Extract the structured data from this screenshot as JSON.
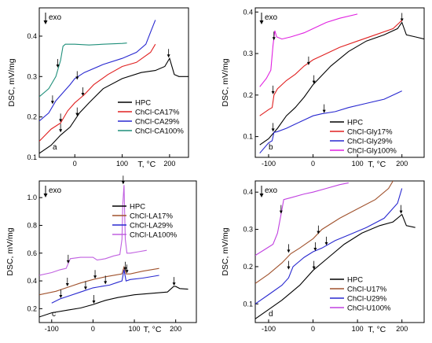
{
  "chart_data": [
    {
      "type": "line",
      "panel_label": "a",
      "exo_label": "exo",
      "xlabel": "T, °C",
      "ylabel": "DSC, mV/mg",
      "xlim": [
        -75,
        240
      ],
      "ylim": [
        0.1,
        0.47
      ],
      "xticks": [
        {
          "v": 0,
          "t": "0"
        },
        {
          "v": 100,
          "t": "100"
        },
        {
          "v": 200,
          "t": "200"
        }
      ],
      "yticks": [
        {
          "v": 0.1,
          "t": "0.1"
        },
        {
          "v": 0.2,
          "t": "0.2"
        },
        {
          "v": 0.3,
          "t": "0.3"
        },
        {
          "v": 0.4,
          "t": "0.4"
        }
      ],
      "legend_position": "bottom-right",
      "series": [
        {
          "name": "HPC",
          "color": "#000000",
          "x": [
            -75,
            -50,
            -30,
            -10,
            10,
            30,
            60,
            100,
            140,
            170,
            190,
            200,
            210,
            220,
            240
          ],
          "y": [
            0.11,
            0.13,
            0.155,
            0.175,
            0.21,
            0.235,
            0.27,
            0.295,
            0.31,
            0.315,
            0.325,
            0.345,
            0.305,
            0.3,
            0.3
          ],
          "arrows": [
            {
              "x": -30,
              "y": 0.16
            },
            {
              "x": 5,
              "y": 0.2
            },
            {
              "x": 198,
              "y": 0.345
            }
          ]
        },
        {
          "name": "ChCl-CA17%",
          "color": "#e02020",
          "x": [
            -75,
            -50,
            -30,
            -15,
            0,
            20,
            40,
            70,
            100,
            130,
            160,
            170
          ],
          "y": [
            0.14,
            0.17,
            0.185,
            0.215,
            0.235,
            0.255,
            0.28,
            0.305,
            0.325,
            0.335,
            0.36,
            0.38
          ],
          "arrows": [
            {
              "x": -30,
              "y": 0.185
            },
            {
              "x": 17,
              "y": 0.25
            }
          ]
        },
        {
          "name": "ChCl-CA29%",
          "color": "#2828d0",
          "x": [
            -75,
            -55,
            -40,
            -25,
            -10,
            0,
            20,
            60,
            100,
            130,
            150,
            160,
            170
          ],
          "y": [
            0.19,
            0.21,
            0.24,
            0.26,
            0.28,
            0.295,
            0.31,
            0.33,
            0.345,
            0.36,
            0.38,
            0.41,
            0.44
          ],
          "arrows": [
            {
              "x": -47,
              "y": 0.23
            },
            {
              "x": 5,
              "y": 0.29
            }
          ]
        },
        {
          "name": "ChCl-CA100%",
          "color": "#1f8f7a",
          "x": [
            -75,
            -55,
            -40,
            -30,
            -25,
            -20,
            0,
            30,
            60,
            100,
            110
          ],
          "y": [
            0.25,
            0.27,
            0.3,
            0.34,
            0.375,
            0.38,
            0.38,
            0.378,
            0.38,
            0.382,
            0.383
          ],
          "arrows": [
            {
              "x": -36,
              "y": 0.32
            }
          ]
        }
      ]
    },
    {
      "type": "line",
      "panel_label": "b",
      "exo_label": "exo",
      "xlabel": "T, °C",
      "ylabel": "DSC, mV/mg",
      "xlim": [
        -130,
        250
      ],
      "ylim": [
        0.05,
        0.41
      ],
      "xticks": [
        {
          "v": -100,
          "t": "-100"
        },
        {
          "v": 0,
          "t": "0"
        },
        {
          "v": 100,
          "t": "100"
        },
        {
          "v": 200,
          "t": "200"
        }
      ],
      "yticks": [
        {
          "v": 0.1,
          "t": "0.1"
        },
        {
          "v": 0.2,
          "t": "0.2"
        },
        {
          "v": 0.3,
          "t": "0.3"
        },
        {
          "v": 0.4,
          "t": "0.4"
        }
      ],
      "legend_position": "bottom-right",
      "series": [
        {
          "name": "HPC",
          "color": "#000000",
          "x": [
            -120,
            -100,
            -80,
            -60,
            -40,
            -20,
            0,
            40,
            80,
            120,
            160,
            190,
            200,
            210,
            230,
            250
          ],
          "y": [
            0.08,
            0.095,
            0.12,
            0.15,
            0.17,
            0.195,
            0.225,
            0.27,
            0.305,
            0.33,
            0.345,
            0.36,
            0.375,
            0.345,
            0.34,
            0.335
          ],
          "arrows": [
            {
              "x": 2,
              "y": 0.225
            },
            {
              "x": 200,
              "y": 0.375
            }
          ]
        },
        {
          "name": "ChCl-Gly17%",
          "color": "#e02020",
          "x": [
            -120,
            -100,
            -92,
            -88,
            -80,
            -60,
            -40,
            -20,
            0,
            30,
            60,
            100,
            140,
            180,
            200
          ],
          "y": [
            0.15,
            0.165,
            0.17,
            0.2,
            0.215,
            0.235,
            0.25,
            0.27,
            0.285,
            0.3,
            0.315,
            0.33,
            0.345,
            0.36,
            0.38
          ],
          "arrows": [
            {
              "x": -90,
              "y": 0.2
            },
            {
              "x": -10,
              "y": 0.27
            }
          ]
        },
        {
          "name": "ChCl-Gly29%",
          "color": "#2828d0",
          "x": [
            -120,
            -100,
            -92,
            -88,
            -80,
            -60,
            -40,
            -20,
            0,
            20,
            50,
            80,
            120,
            160,
            200
          ],
          "y": [
            0.06,
            0.085,
            0.09,
            0.11,
            0.112,
            0.12,
            0.13,
            0.14,
            0.15,
            0.155,
            0.16,
            0.17,
            0.18,
            0.19,
            0.21
          ],
          "arrows": [
            {
              "x": -90,
              "y": 0.11
            },
            {
              "x": 25,
              "y": 0.155
            }
          ]
        },
        {
          "name": "ChCl-Gly100%",
          "color": "#e020e0",
          "x": [
            -120,
            -105,
            -95,
            -90,
            -86,
            -82,
            -70,
            -50,
            -20,
            0,
            30,
            60,
            100
          ],
          "y": [
            0.22,
            0.24,
            0.26,
            0.32,
            0.355,
            0.34,
            0.335,
            0.34,
            0.35,
            0.36,
            0.375,
            0.385,
            0.395
          ],
          "arrows": [
            {
              "x": -88,
              "y": 0.33
            }
          ]
        }
      ]
    },
    {
      "type": "line",
      "panel_label": "c",
      "exo_label": "exo",
      "xlabel": "T, °C",
      "ylabel": "DSC, mV/mg",
      "xlim": [
        -130,
        250
      ],
      "ylim": [
        0.1,
        1.12
      ],
      "xticks": [
        {
          "v": -100,
          "t": "-100"
        },
        {
          "v": 0,
          "t": "0"
        },
        {
          "v": 100,
          "t": "100"
        },
        {
          "v": 200,
          "t": "200"
        }
      ],
      "yticks": [
        {
          "v": 0.2,
          "t": "0.2"
        },
        {
          "v": 0.4,
          "t": "0.4"
        },
        {
          "v": 0.6,
          "t": "0.6"
        },
        {
          "v": 0.8,
          "t": "0.8"
        },
        {
          "v": 1.0,
          "t": "1.0"
        }
      ],
      "legend_position": "top-right",
      "series": [
        {
          "name": "HPC",
          "color": "#000000",
          "x": [
            -130,
            -100,
            -60,
            -30,
            0,
            30,
            60,
            100,
            140,
            180,
            195,
            200,
            210,
            230
          ],
          "y": [
            0.14,
            0.17,
            0.19,
            0.205,
            0.23,
            0.26,
            0.28,
            0.3,
            0.31,
            0.32,
            0.36,
            0.36,
            0.345,
            0.34
          ],
          "arrows": [
            {
              "x": 2,
              "y": 0.23
            },
            {
              "x": 196,
              "y": 0.36
            }
          ]
        },
        {
          "name": "ChCl-LA17%",
          "color": "#a0522d",
          "x": [
            -130,
            -90,
            -60,
            -30,
            0,
            30,
            60,
            70,
            75,
            80,
            90,
            120,
            160
          ],
          "y": [
            0.3,
            0.325,
            0.355,
            0.385,
            0.41,
            0.43,
            0.445,
            0.45,
            0.5,
            0.45,
            0.45,
            0.47,
            0.49
          ],
          "arrows": [
            {
              "x": -62,
              "y": 0.355
            },
            {
              "x": 5,
              "y": 0.41
            },
            {
              "x": 78,
              "y": 0.47
            }
          ]
        },
        {
          "name": "ChCl-LA29%",
          "color": "#2828d0",
          "x": [
            -100,
            -80,
            -60,
            -30,
            0,
            20,
            40,
            60,
            70,
            75,
            80,
            90,
            120,
            160
          ],
          "y": [
            0.24,
            0.27,
            0.29,
            0.32,
            0.35,
            0.36,
            0.37,
            0.39,
            0.4,
            0.48,
            0.4,
            0.41,
            0.42,
            0.44
          ],
          "arrows": [
            {
              "x": -78,
              "y": 0.27
            },
            {
              "x": -18,
              "y": 0.33
            },
            {
              "x": 30,
              "y": 0.37
            },
            {
              "x": 82,
              "y": 0.45
            }
          ]
        },
        {
          "name": "ChCl-LA100%",
          "color": "#c060e0",
          "x": [
            -130,
            -100,
            -80,
            -65,
            -55,
            -30,
            0,
            10,
            30,
            50,
            65,
            70,
            72,
            75,
            78,
            82,
            90,
            110,
            130
          ],
          "y": [
            0.44,
            0.46,
            0.48,
            0.49,
            0.56,
            0.57,
            0.57,
            0.55,
            0.56,
            0.58,
            0.59,
            0.7,
            0.95,
            1.09,
            0.7,
            0.6,
            0.6,
            0.61,
            0.62
          ],
          "arrows": [
            {
              "x": -60,
              "y": 0.52
            },
            {
              "x": 73,
              "y": 1.09
            }
          ]
        }
      ]
    },
    {
      "type": "line",
      "panel_label": "d",
      "exo_label": "exo",
      "xlabel": "T, °C",
      "ylabel": "DSC, mV/mg",
      "xlim": [
        -130,
        250
      ],
      "ylim": [
        0.05,
        0.43
      ],
      "xticks": [
        {
          "v": -100,
          "t": "-100"
        },
        {
          "v": 0,
          "t": "0"
        },
        {
          "v": 100,
          "t": "100"
        },
        {
          "v": 200,
          "t": "200"
        }
      ],
      "yticks": [
        {
          "v": 0.1,
          "t": "0.1"
        },
        {
          "v": 0.2,
          "t": "0.2"
        },
        {
          "v": 0.3,
          "t": "0.3"
        },
        {
          "v": 0.4,
          "t": "0.4"
        }
      ],
      "legend_position": "bottom-right",
      "series": [
        {
          "name": "HPC",
          "color": "#000000",
          "x": [
            -130,
            -100,
            -70,
            -50,
            -30,
            0,
            30,
            70,
            110,
            150,
            180,
            195,
            200,
            210,
            230
          ],
          "y": [
            0.06,
            0.085,
            0.11,
            0.13,
            0.15,
            0.19,
            0.22,
            0.26,
            0.29,
            0.31,
            0.32,
            0.335,
            0.34,
            0.31,
            0.305
          ],
          "arrows": [
            {
              "x": 2,
              "y": 0.19
            },
            {
              "x": 198,
              "y": 0.34
            }
          ]
        },
        {
          "name": "ChCl-U17%",
          "color": "#a0522d",
          "x": [
            -130,
            -100,
            -70,
            -50,
            -30,
            0,
            20,
            60,
            100,
            140,
            170,
            180
          ],
          "y": [
            0.155,
            0.18,
            0.21,
            0.235,
            0.25,
            0.275,
            0.3,
            0.33,
            0.355,
            0.38,
            0.41,
            0.43
          ],
          "arrows": [
            {
              "x": -55,
              "y": 0.235
            },
            {
              "x": 12,
              "y": 0.285
            }
          ]
        },
        {
          "name": "ChCl-U29%",
          "color": "#2828d0",
          "x": [
            -130,
            -100,
            -70,
            -55,
            -45,
            -20,
            0,
            20,
            50,
            80,
            120,
            160,
            190,
            200
          ],
          "y": [
            0.1,
            0.125,
            0.15,
            0.17,
            0.2,
            0.225,
            0.24,
            0.25,
            0.27,
            0.285,
            0.305,
            0.33,
            0.37,
            0.41
          ],
          "arrows": [
            {
              "x": -55,
              "y": 0.19
            },
            {
              "x": 5,
              "y": 0.24
            },
            {
              "x": 30,
              "y": 0.255
            }
          ]
        },
        {
          "name": "ChCl-U100%",
          "color": "#c040e0",
          "x": [
            -130,
            -110,
            -90,
            -80,
            -72,
            -66,
            -50,
            -20,
            0,
            30,
            60,
            80
          ],
          "y": [
            0.23,
            0.245,
            0.26,
            0.29,
            0.34,
            0.38,
            0.385,
            0.395,
            0.4,
            0.41,
            0.42,
            0.425
          ],
          "arrows": [
            {
              "x": -72,
              "y": 0.34
            }
          ]
        }
      ]
    }
  ]
}
